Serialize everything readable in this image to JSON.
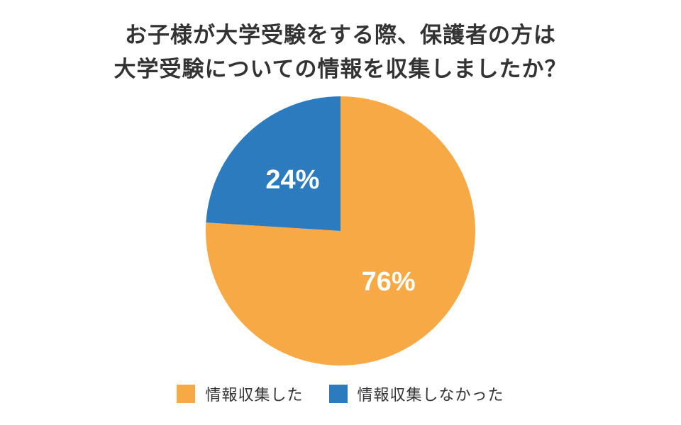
{
  "chart_data": {
    "type": "pie",
    "title": [
      "お子様が大学受験をする際、保護者の方は",
      "大学受験についての情報を収集しましたか？"
    ],
    "slices": [
      {
        "name": "情報収集した",
        "value": 76,
        "label": "76%",
        "color": "#F7A945"
      },
      {
        "name": "情報収集しなかった",
        "value": 24,
        "label": "24%",
        "color": "#2B7BBE"
      }
    ],
    "legend_position": "bottom"
  }
}
